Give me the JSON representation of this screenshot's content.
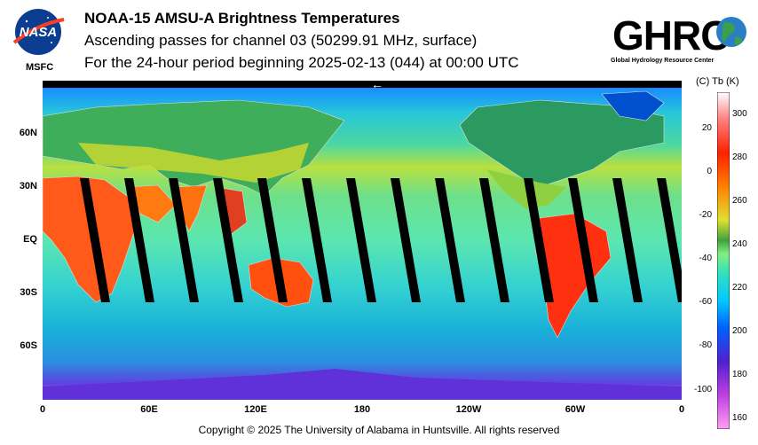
{
  "header": {
    "title": "NOAA-15 AMSU-A Brightness Temperatures",
    "subtitle": "Ascending passes for channel 03 (50299.91 MHz, surface)",
    "period": "For the 24-hour period beginning 2025-02-13 (044) at 00:00 UTC"
  },
  "logos": {
    "nasa_text": "NASA",
    "msfc_label": "MSFC",
    "ghrc_text": "GHRC",
    "ghrc_subtitle": "Global Hydrology Resource Center"
  },
  "map": {
    "lat_labels": [
      "60N",
      "30N",
      "EQ",
      "30S",
      "60S"
    ],
    "lat_values": [
      60,
      30,
      0,
      -30,
      -60
    ],
    "lon_labels": [
      "0",
      "60E",
      "120E",
      "180",
      "120W",
      "60W",
      "0"
    ],
    "lon_values": [
      0,
      60,
      120,
      180,
      240,
      300,
      360
    ],
    "orbit_direction_symbol": "←",
    "swath_gap_count": 14
  },
  "colorbar": {
    "units_label": "(C)  Tb  (K)",
    "celsius_ticks": [
      "20",
      "0",
      "-20",
      "-40",
      "-60",
      "-80",
      "-100"
    ],
    "kelvin_ticks": [
      "300",
      "280",
      "260",
      "240",
      "220",
      "200",
      "180",
      "160"
    ],
    "kelvin_range": [
      155,
      310
    ],
    "colors": [
      "#ff9ff0",
      "#c040e0",
      "#5020d0",
      "#0060ff",
      "#00c8ff",
      "#30e0c0",
      "#80f080",
      "#40a040",
      "#e0e030",
      "#ff8000",
      "#ff2000",
      "#ff8080",
      "#ffffff"
    ]
  },
  "footer": {
    "copyright": "Copyright © 2025 The University of Alabama in Huntsville.  All rights reserved"
  }
}
